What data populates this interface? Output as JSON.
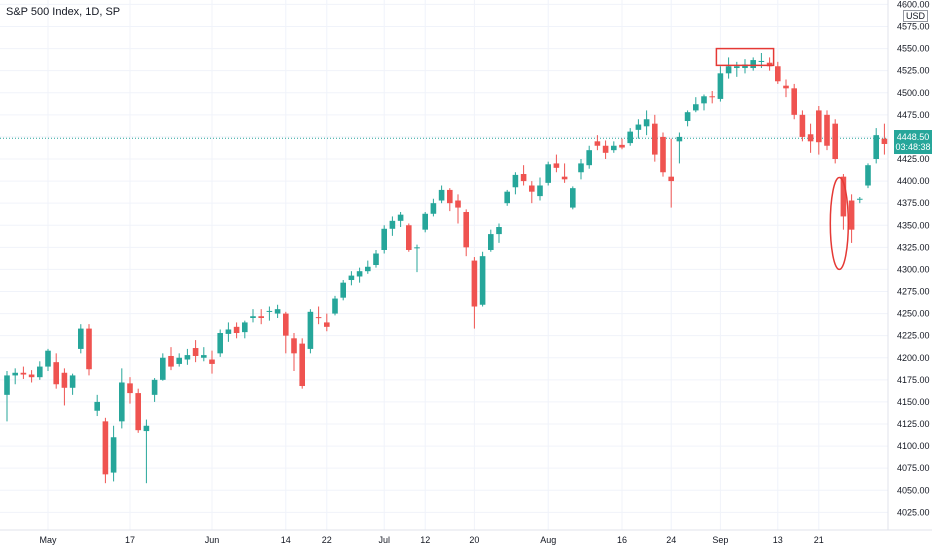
{
  "header": {
    "title": "S&P 500 Index, 1D, SP",
    "currency": "USD",
    "last_price": "4448.50",
    "countdown": "03:48:38"
  },
  "colors": {
    "up": "#26a69a",
    "down": "#ef5350",
    "grid": "#f0f3fa",
    "annotation": "#e53935",
    "last_price_line": "#26a69a"
  },
  "chart_data": {
    "type": "candlestick",
    "title": "S&P 500 Index, 1D, SP",
    "ylim": [
      4005,
      4605
    ],
    "y_ticks": [
      "4025.00",
      "4050.00",
      "4075.00",
      "4100.00",
      "4125.00",
      "4150.00",
      "4175.00",
      "4200.00",
      "4225.00",
      "4250.00",
      "4275.00",
      "4300.00",
      "4325.00",
      "4350.00",
      "4375.00",
      "4400.00",
      "4425.00",
      "4450.00",
      "4475.00",
      "4500.00",
      "4525.00",
      "4550.00",
      "4575.00",
      "4600.00"
    ],
    "x_ticks": [
      {
        "label": "May",
        "index": 5
      },
      {
        "label": "17",
        "index": 15
      },
      {
        "label": "Jun",
        "index": 25
      },
      {
        "label": "14",
        "index": 34
      },
      {
        "label": "22",
        "index": 39
      },
      {
        "label": "Jul",
        "index": 46
      },
      {
        "label": "12",
        "index": 51
      },
      {
        "label": "20",
        "index": 57
      },
      {
        "label": "Aug",
        "index": 66
      },
      {
        "label": "16",
        "index": 75
      },
      {
        "label": "24",
        "index": 81
      },
      {
        "label": "Sep",
        "index": 87
      },
      {
        "label": "13",
        "index": 94
      },
      {
        "label": "21",
        "index": 99
      }
    ],
    "grid": true,
    "last_price": 4448.5,
    "candles": [
      [
        4158,
        4185,
        4128,
        4180
      ],
      [
        4180,
        4188,
        4170,
        4183
      ],
      [
        4183,
        4190,
        4176,
        4181
      ],
      [
        4181,
        4186,
        4172,
        4178
      ],
      [
        4178,
        4196,
        4175,
        4190
      ],
      [
        4190,
        4210,
        4185,
        4208
      ],
      [
        4195,
        4205,
        4165,
        4170
      ],
      [
        4183,
        4188,
        4146,
        4166
      ],
      [
        4166,
        4182,
        4158,
        4180
      ],
      [
        4210,
        4238,
        4205,
        4233
      ],
      [
        4233,
        4238,
        4180,
        4187
      ],
      [
        4140,
        4158,
        4134,
        4150
      ],
      [
        4128,
        4132,
        4058,
        4068
      ],
      [
        4070,
        4123,
        4060,
        4110
      ],
      [
        4128,
        4188,
        4120,
        4172
      ],
      [
        4171,
        4178,
        4148,
        4160
      ],
      [
        4160,
        4165,
        4115,
        4118
      ],
      [
        4117,
        4130,
        4058,
        4123
      ],
      [
        4158,
        4177,
        4150,
        4175
      ],
      [
        4175,
        4205,
        4174,
        4200
      ],
      [
        4202,
        4212,
        4186,
        4190
      ],
      [
        4193,
        4205,
        4190,
        4200
      ],
      [
        4198,
        4210,
        4192,
        4203
      ],
      [
        4211,
        4220,
        4195,
        4202
      ],
      [
        4200,
        4212,
        4196,
        4203
      ],
      [
        4198,
        4208,
        4182,
        4193
      ],
      [
        4205,
        4232,
        4201,
        4228
      ],
      [
        4227,
        4240,
        4218,
        4232
      ],
      [
        4235,
        4240,
        4222,
        4228
      ],
      [
        4229,
        4242,
        4222,
        4240
      ],
      [
        4245,
        4255,
        4240,
        4247
      ],
      [
        4247,
        4255,
        4238,
        4245
      ],
      [
        4252,
        4258,
        4242,
        4253
      ],
      [
        4250,
        4260,
        4245,
        4255
      ],
      [
        4250,
        4252,
        4205,
        4225
      ],
      [
        4222,
        4228,
        4185,
        4205
      ],
      [
        4216,
        4222,
        4165,
        4168
      ],
      [
        4210,
        4255,
        4205,
        4252
      ],
      [
        4246,
        4258,
        4238,
        4245
      ],
      [
        4240,
        4250,
        4230,
        4235
      ],
      [
        4250,
        4270,
        4248,
        4267
      ],
      [
        4268,
        4288,
        4265,
        4285
      ],
      [
        4288,
        4298,
        4282,
        4293
      ],
      [
        4292,
        4302,
        4285,
        4298
      ],
      [
        4298,
        4310,
        4295,
        4303
      ],
      [
        4305,
        4322,
        4302,
        4318
      ],
      [
        4322,
        4350,
        4318,
        4346
      ],
      [
        4346,
        4360,
        4338,
        4355
      ],
      [
        4355,
        4365,
        4348,
        4362
      ],
      [
        4350,
        4352,
        4320,
        4322
      ],
      [
        4325,
        4328,
        4297,
        4325
      ],
      [
        4345,
        4365,
        4342,
        4363
      ],
      [
        4363,
        4380,
        4360,
        4375
      ],
      [
        4378,
        4395,
        4375,
        4390
      ],
      [
        4390,
        4392,
        4366,
        4375
      ],
      [
        4378,
        4385,
        4352,
        4370
      ],
      [
        4365,
        4368,
        4315,
        4325
      ],
      [
        4310,
        4314,
        4233,
        4258
      ],
      [
        4260,
        4320,
        4258,
        4315
      ],
      [
        4322,
        4345,
        4320,
        4340
      ],
      [
        4340,
        4352,
        4330,
        4348
      ],
      [
        4375,
        4390,
        4372,
        4388
      ],
      [
        4393,
        4410,
        4385,
        4407
      ],
      [
        4408,
        4418,
        4395,
        4400
      ],
      [
        4395,
        4400,
        4375,
        4388
      ],
      [
        4383,
        4404,
        4378,
        4395
      ],
      [
        4398,
        4422,
        4395,
        4419
      ],
      [
        4420,
        4430,
        4410,
        4415
      ],
      [
        4405,
        4420,
        4398,
        4402
      ],
      [
        4370,
        4394,
        4368,
        4392
      ],
      [
        4410,
        4425,
        4402,
        4420
      ],
      [
        4418,
        4440,
        4414,
        4435
      ],
      [
        4445,
        4452,
        4435,
        4440
      ],
      [
        4440,
        4446,
        4425,
        4432
      ],
      [
        4435,
        4445,
        4432,
        4440
      ],
      [
        4441,
        4448,
        4436,
        4438
      ],
      [
        4443,
        4460,
        4440,
        4456
      ],
      [
        4458,
        4470,
        4448,
        4464
      ],
      [
        4462,
        4480,
        4452,
        4470
      ],
      [
        4465,
        4475,
        4422,
        4430
      ],
      [
        4450,
        4455,
        4405,
        4410
      ],
      [
        4405,
        4448,
        4370,
        4400
      ],
      [
        4445,
        4455,
        4420,
        4450
      ],
      [
        4468,
        4480,
        4462,
        4478
      ],
      [
        4480,
        4495,
        4478,
        4487
      ],
      [
        4488,
        4498,
        4480,
        4496
      ],
      [
        4496,
        4502,
        4488,
        4495
      ],
      [
        4493,
        4530,
        4490,
        4522
      ],
      [
        4522,
        4540,
        4516,
        4530
      ],
      [
        4528,
        4535,
        4518,
        4530
      ],
      [
        4528,
        4538,
        4522,
        4532
      ],
      [
        4528,
        4540,
        4525,
        4537
      ],
      [
        4535,
        4545,
        4528,
        4536
      ],
      [
        4534,
        4540,
        4525,
        4530
      ],
      [
        4530,
        4535,
        4510,
        4513
      ],
      [
        4508,
        4515,
        4495,
        4505
      ],
      [
        4505,
        4510,
        4470,
        4475
      ],
      [
        4475,
        4480,
        4445,
        4450
      ],
      [
        4453,
        4465,
        4432,
        4445
      ],
      [
        4480,
        4485,
        4430,
        4444
      ],
      [
        4475,
        4480,
        4435,
        4440
      ],
      [
        4465,
        4470,
        4420,
        4425
      ],
      [
        4405,
        4408,
        4345,
        4360
      ],
      [
        4378,
        4385,
        4330,
        4345
      ],
      [
        4380,
        4382,
        4375,
        4380
      ],
      [
        4395,
        4420,
        4392,
        4418
      ],
      [
        4425,
        4460,
        4420,
        4452
      ],
      [
        4448,
        4465,
        4430,
        4442
      ],
      [
        4440,
        4455,
        4438,
        4448
      ]
    ]
  },
  "annotations": [
    {
      "shape": "rectangle",
      "range_start_index": 87,
      "range_end_index": 93,
      "y_range": [
        4531,
        4550
      ]
    },
    {
      "shape": "ellipse",
      "center_index": 101.5,
      "y_center": 4352,
      "y_halfheight": 52
    }
  ]
}
